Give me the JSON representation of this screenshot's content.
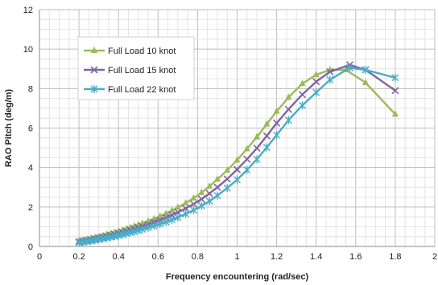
{
  "chart_data": {
    "type": "line",
    "title": "",
    "xlabel": "Frequency encountering (rad/sec)",
    "ylabel": "RAO Pitch (deg/m)",
    "xlim": [
      0,
      2
    ],
    "ylim": [
      0,
      12
    ],
    "xticks": [
      "0",
      "0.2",
      "0.4",
      "0.6",
      "0.8",
      "1",
      "1.2",
      "1.4",
      "1.6",
      "1.8",
      "2"
    ],
    "yticks": [
      "0",
      "2",
      "4",
      "6",
      "8",
      "10",
      "12"
    ],
    "grid": true,
    "legend_position": "upper-left inside",
    "series": [
      {
        "name": "Full Load 10 knot",
        "color": "#9BBB59",
        "marker": "triangle",
        "x": [
          0.2,
          0.22,
          0.24,
          0.26,
          0.28,
          0.3,
          0.32,
          0.34,
          0.36,
          0.38,
          0.4,
          0.42,
          0.44,
          0.46,
          0.48,
          0.5,
          0.52,
          0.55,
          0.58,
          0.61,
          0.64,
          0.67,
          0.7,
          0.74,
          0.78,
          0.82,
          0.86,
          0.9,
          0.95,
          1.0,
          1.05,
          1.1,
          1.15,
          1.2,
          1.26,
          1.33,
          1.4,
          1.47,
          1.55,
          1.65,
          1.8
        ],
        "y": [
          0.28,
          0.32,
          0.36,
          0.4,
          0.45,
          0.5,
          0.55,
          0.6,
          0.65,
          0.71,
          0.77,
          0.83,
          0.89,
          0.96,
          1.03,
          1.1,
          1.17,
          1.28,
          1.4,
          1.53,
          1.67,
          1.82,
          1.98,
          2.2,
          2.45,
          2.73,
          3.05,
          3.4,
          3.86,
          4.38,
          4.95,
          5.55,
          6.2,
          6.85,
          7.55,
          8.25,
          8.7,
          8.95,
          8.95,
          8.3,
          6.7
        ]
      },
      {
        "name": "Full Load 15 knot",
        "color": "#8064A2",
        "marker": "x",
        "x": [
          0.2,
          0.22,
          0.24,
          0.26,
          0.28,
          0.3,
          0.32,
          0.34,
          0.36,
          0.38,
          0.4,
          0.42,
          0.44,
          0.46,
          0.48,
          0.5,
          0.52,
          0.55,
          0.58,
          0.61,
          0.64,
          0.67,
          0.7,
          0.74,
          0.78,
          0.82,
          0.86,
          0.9,
          0.95,
          1.0,
          1.05,
          1.1,
          1.15,
          1.2,
          1.26,
          1.33,
          1.4,
          1.47,
          1.57,
          1.65,
          1.8
        ],
        "y": [
          0.24,
          0.28,
          0.31,
          0.35,
          0.39,
          0.43,
          0.47,
          0.52,
          0.57,
          0.62,
          0.67,
          0.72,
          0.78,
          0.84,
          0.9,
          0.96,
          1.02,
          1.12,
          1.23,
          1.34,
          1.46,
          1.59,
          1.73,
          1.93,
          2.15,
          2.4,
          2.68,
          3.0,
          3.42,
          3.9,
          4.42,
          4.98,
          5.6,
          6.25,
          6.95,
          7.7,
          8.35,
          8.85,
          9.2,
          8.95,
          7.9
        ]
      },
      {
        "name": "Full Load 22 knot",
        "color": "#4BACC6",
        "marker": "asterisk",
        "x": [
          0.2,
          0.22,
          0.24,
          0.26,
          0.28,
          0.3,
          0.32,
          0.34,
          0.36,
          0.38,
          0.4,
          0.42,
          0.44,
          0.46,
          0.48,
          0.5,
          0.52,
          0.55,
          0.58,
          0.61,
          0.64,
          0.67,
          0.7,
          0.74,
          0.78,
          0.82,
          0.86,
          0.9,
          0.95,
          1.0,
          1.05,
          1.1,
          1.15,
          1.2,
          1.26,
          1.33,
          1.4,
          1.47,
          1.57,
          1.65,
          1.8
        ],
        "y": [
          0.2,
          0.23,
          0.26,
          0.29,
          0.32,
          0.36,
          0.4,
          0.44,
          0.48,
          0.52,
          0.56,
          0.61,
          0.66,
          0.71,
          0.76,
          0.81,
          0.87,
          0.95,
          1.04,
          1.14,
          1.24,
          1.35,
          1.47,
          1.65,
          1.84,
          2.06,
          2.3,
          2.58,
          2.96,
          3.38,
          3.88,
          4.42,
          5.02,
          5.65,
          6.4,
          7.15,
          7.8,
          8.45,
          9.05,
          8.95,
          8.55
        ]
      }
    ]
  }
}
